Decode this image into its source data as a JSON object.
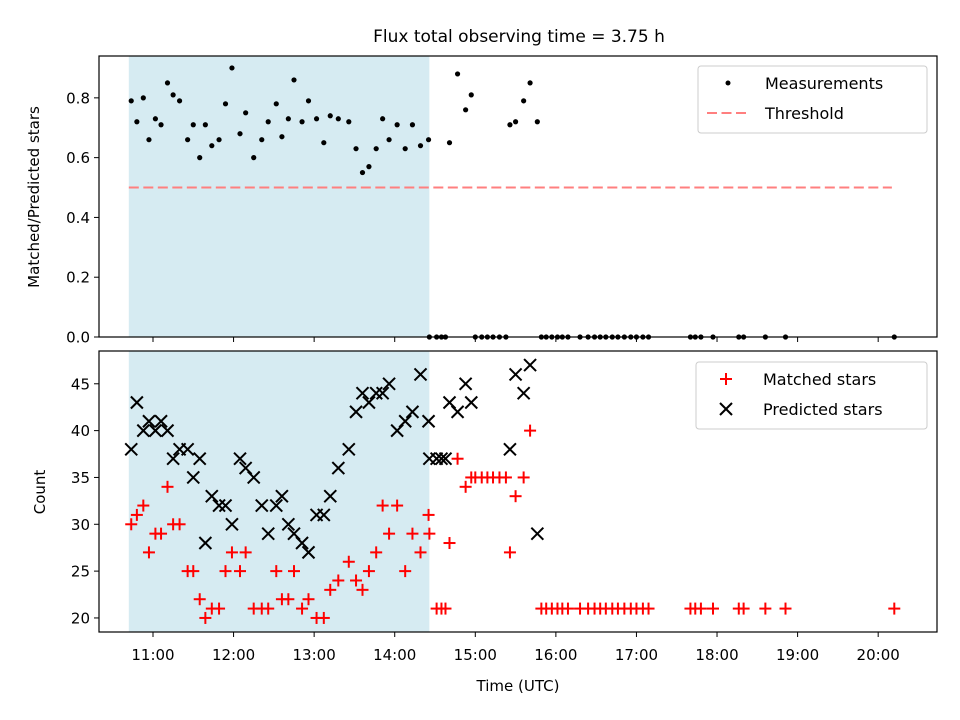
{
  "figure": {
    "title": "Flux total observing time = 3.75 h",
    "colors": {
      "measurement": "#000000",
      "threshold": "#ff7f7f",
      "matched": "#ff0000",
      "predicted": "#000000",
      "shade": "#add8e6"
    }
  },
  "chart_data": [
    {
      "type": "scatter",
      "panel": "top",
      "title": "Flux total observing time = 3.75 h",
      "xlabel": "",
      "ylabel": "Matched/Predicted stars",
      "x_unit": "hours UTC",
      "xlim": [
        10.33,
        20.73
      ],
      "ylim": [
        0,
        0.94
      ],
      "yticks": [
        0.0,
        0.2,
        0.4,
        0.6,
        0.8
      ],
      "ytick_labels": [
        "0.0",
        "0.2",
        "0.4",
        "0.6",
        "0.8"
      ],
      "shaded_span": [
        10.7,
        14.43
      ],
      "legend": {
        "position": "top-right",
        "entries": [
          "Measurements",
          "Threshold"
        ]
      },
      "threshold": {
        "name": "Threshold",
        "y": 0.5,
        "x": [
          10.7,
          20.17
        ],
        "style": "dashed"
      },
      "series": [
        {
          "name": "Measurements",
          "marker": "dot",
          "x": [
            10.73,
            10.8,
            10.88,
            10.95,
            11.03,
            11.1,
            11.18,
            11.25,
            11.33,
            11.43,
            11.5,
            11.58,
            11.65,
            11.73,
            11.82,
            11.9,
            11.98,
            12.08,
            12.15,
            12.25,
            12.35,
            12.43,
            12.53,
            12.6,
            12.68,
            12.75,
            12.85,
            12.93,
            13.03,
            13.12,
            13.2,
            13.3,
            13.43,
            13.52,
            13.6,
            13.68,
            13.77,
            13.85,
            13.93,
            14.03,
            14.13,
            14.22,
            14.32,
            14.42,
            14.68,
            14.78,
            14.88,
            14.95,
            15.43,
            15.5,
            15.6,
            15.68,
            15.77
          ],
          "y": [
            0.79,
            0.72,
            0.8,
            0.66,
            0.73,
            0.71,
            0.85,
            0.81,
            0.79,
            0.66,
            0.71,
            0.6,
            0.71,
            0.64,
            0.66,
            0.78,
            0.9,
            0.68,
            0.75,
            0.6,
            0.66,
            0.72,
            0.78,
            0.67,
            0.73,
            0.86,
            0.72,
            0.79,
            0.73,
            0.65,
            0.74,
            0.73,
            0.72,
            0.63,
            0.55,
            0.57,
            0.63,
            0.73,
            0.66,
            0.71,
            0.63,
            0.71,
            0.64,
            0.66,
            0.65,
            0.88,
            0.76,
            0.81,
            0.71,
            0.72,
            0.79,
            0.85,
            0.72
          ]
        },
        {
          "name": "Measurements (zero)",
          "marker": "dot",
          "x": [
            14.43,
            14.52,
            14.58,
            14.63,
            15.0,
            15.08,
            15.15,
            15.22,
            15.3,
            15.38,
            15.82,
            15.88,
            15.95,
            16.02,
            16.08,
            16.15,
            16.3,
            16.4,
            16.48,
            16.55,
            16.62,
            16.7,
            16.77,
            16.85,
            16.93,
            17.0,
            17.08,
            17.15,
            17.67,
            17.73,
            17.8,
            17.95,
            18.27,
            18.33,
            18.6,
            18.85,
            20.2
          ],
          "y": [
            0,
            0,
            0,
            0,
            0,
            0,
            0,
            0,
            0,
            0,
            0,
            0,
            0,
            0,
            0,
            0,
            0,
            0,
            0,
            0,
            0,
            0,
            0,
            0,
            0,
            0,
            0,
            0,
            0,
            0,
            0,
            0,
            0,
            0,
            0,
            0,
            0
          ]
        }
      ]
    },
    {
      "type": "scatter",
      "panel": "bottom",
      "title": "",
      "xlabel": "Time (UTC)",
      "ylabel": "Count",
      "x_unit": "hours UTC",
      "xlim": [
        10.33,
        20.73
      ],
      "ylim": [
        18.5,
        48.5
      ],
      "yticks": [
        20,
        25,
        30,
        35,
        40,
        45
      ],
      "ytick_labels": [
        "20",
        "25",
        "30",
        "35",
        "40",
        "45"
      ],
      "xticks": [
        11,
        12,
        13,
        14,
        15,
        16,
        17,
        18,
        19,
        20
      ],
      "xtick_labels": [
        "11:00",
        "12:00",
        "13:00",
        "14:00",
        "15:00",
        "16:00",
        "17:00",
        "18:00",
        "19:00",
        "20:00"
      ],
      "shaded_span": [
        10.7,
        14.43
      ],
      "legend": {
        "position": "top-right",
        "entries": [
          "Matched stars",
          "Predicted stars"
        ]
      },
      "series": [
        {
          "name": "Matched stars",
          "marker": "plus",
          "x": [
            10.73,
            10.8,
            10.88,
            10.95,
            11.03,
            11.1,
            11.18,
            11.25,
            11.33,
            11.43,
            11.5,
            11.58,
            11.65,
            11.73,
            11.82,
            11.9,
            11.98,
            12.08,
            12.15,
            12.25,
            12.35,
            12.43,
            12.53,
            12.6,
            12.68,
            12.75,
            12.85,
            12.93,
            13.03,
            13.12,
            13.2,
            13.3,
            13.43,
            13.52,
            13.6,
            13.68,
            13.77,
            13.85,
            13.93,
            14.03,
            14.13,
            14.22,
            14.32,
            14.42,
            14.68,
            14.78,
            14.88,
            14.95,
            15.43,
            15.5,
            15.6,
            15.68,
            14.43,
            14.52,
            14.58,
            14.63,
            15.0,
            15.08,
            15.15,
            15.22,
            15.3,
            15.38,
            15.82,
            15.88,
            15.95,
            16.02,
            16.08,
            16.15,
            16.3,
            16.4,
            16.48,
            16.55,
            16.62,
            16.7,
            16.77,
            16.85,
            16.93,
            17.0,
            17.08,
            17.15,
            17.67,
            17.73,
            17.8,
            17.95,
            18.27,
            18.33,
            18.6,
            18.85,
            20.2
          ],
          "y": [
            30,
            31,
            32,
            27,
            29,
            29,
            34,
            30,
            30,
            25,
            25,
            22,
            20,
            21,
            21,
            25,
            27,
            25,
            27,
            21,
            21,
            21,
            25,
            22,
            22,
            25,
            21,
            22,
            20,
            20,
            23,
            24,
            26,
            24,
            23,
            25,
            27,
            32,
            29,
            32,
            25,
            29,
            27,
            31,
            28,
            37,
            34,
            35,
            27,
            33,
            35,
            40,
            29,
            21,
            21,
            21,
            35,
            35,
            35,
            35,
            35,
            35,
            21,
            21,
            21,
            21,
            21,
            21,
            21,
            21,
            21,
            21,
            21,
            21,
            21,
            21,
            21,
            21,
            21,
            21,
            21,
            21,
            21,
            21,
            21,
            21,
            21,
            21,
            21
          ]
        },
        {
          "name": "Predicted stars",
          "marker": "x",
          "x": [
            10.73,
            10.8,
            10.88,
            10.95,
            11.03,
            11.1,
            11.18,
            11.25,
            11.33,
            11.43,
            11.5,
            11.58,
            11.65,
            11.73,
            11.82,
            11.9,
            11.98,
            12.08,
            12.15,
            12.25,
            12.35,
            12.43,
            12.53,
            12.6,
            12.68,
            12.75,
            12.85,
            12.93,
            13.03,
            13.12,
            13.2,
            13.3,
            13.43,
            13.52,
            13.6,
            13.68,
            13.77,
            13.85,
            13.93,
            14.03,
            14.13,
            14.22,
            14.32,
            14.42,
            14.68,
            14.78,
            14.88,
            14.95,
            15.43,
            15.5,
            15.6,
            15.68,
            14.43,
            14.52,
            14.58,
            14.63,
            15.77
          ],
          "y": [
            38,
            43,
            40,
            41,
            40,
            41,
            40,
            37,
            38,
            38,
            35,
            37,
            28,
            33,
            32,
            32,
            30,
            37,
            36,
            35,
            32,
            29,
            32,
            33,
            30,
            29,
            28,
            27,
            31,
            31,
            33,
            36,
            38,
            42,
            44,
            43,
            44,
            44,
            45,
            40,
            41,
            42,
            46,
            41,
            43,
            42,
            45,
            43,
            38,
            46,
            44,
            47,
            37,
            37,
            37,
            37,
            29
          ]
        }
      ]
    }
  ]
}
